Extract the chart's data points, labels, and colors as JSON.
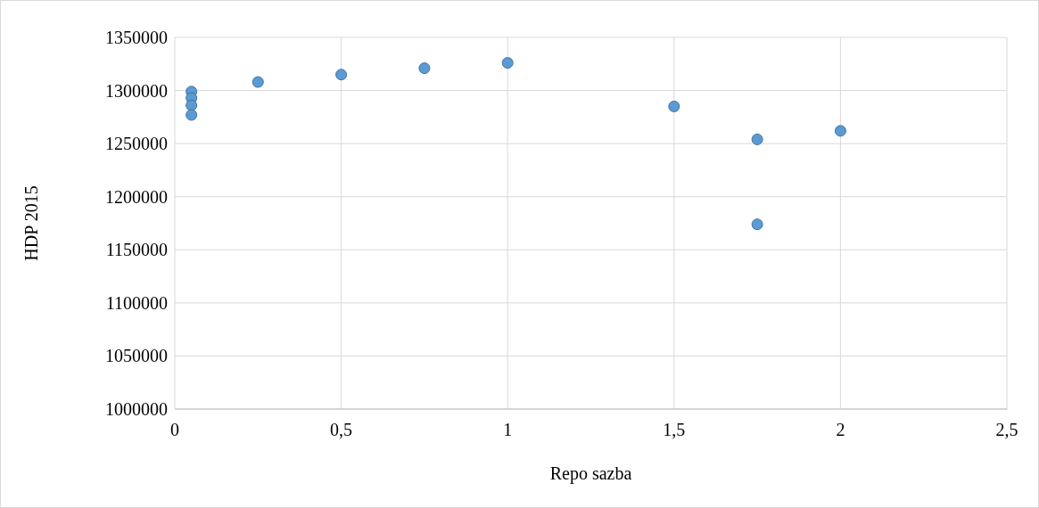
{
  "chart_data": {
    "type": "scatter",
    "xlabel": "Repo sazba",
    "ylabel": "HDP 2015",
    "x": [
      0.05,
      0.05,
      0.05,
      0.05,
      0.25,
      0.5,
      0.75,
      1,
      1.5,
      1.75,
      1.75,
      2
    ],
    "values": [
      1299000,
      1293000,
      1286000,
      1277000,
      1308000,
      1315000,
      1321000,
      1326000,
      1285000,
      1254000,
      1174000,
      1262000
    ],
    "color": "#5b9bd5",
    "marker": "circle",
    "grid": true,
    "xlim": [
      0,
      2.5
    ],
    "xticks": [
      0,
      {
        "value": 0.5,
        "label": "0,5"
      },
      1,
      {
        "value": 1.5,
        "label": "1,5"
      },
      2,
      {
        "value": 2.5,
        "label": "2,5"
      }
    ],
    "ylim": [
      1000000,
      1350000
    ],
    "yticks": [
      1000000,
      1050000,
      1100000,
      1150000,
      1200000,
      1250000,
      1300000,
      1350000
    ]
  }
}
